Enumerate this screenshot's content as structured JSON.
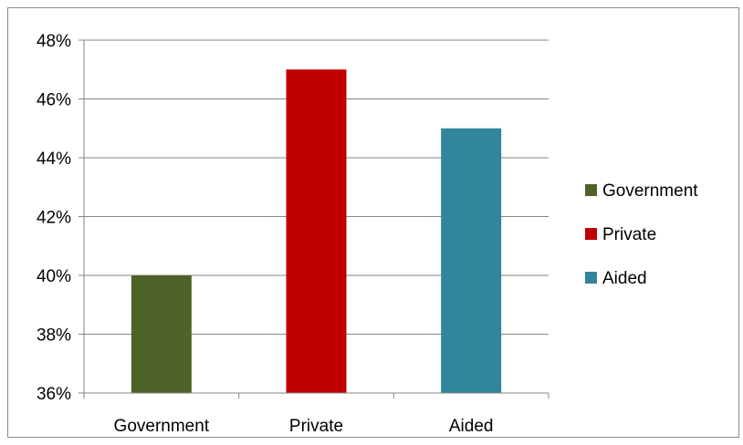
{
  "chart_data": {
    "type": "bar",
    "title": "",
    "xlabel": "",
    "ylabel": "",
    "categories": [
      "Government",
      "Private",
      "Aided"
    ],
    "values": [
      40,
      47,
      45
    ],
    "colors": [
      "#4f6228",
      "#c00000",
      "#31859c"
    ],
    "ylim": [
      36,
      48
    ],
    "yticks": [
      "36%",
      "38%",
      "40%",
      "42%",
      "44%",
      "46%",
      "48%"
    ],
    "ytick_values": [
      36,
      38,
      40,
      42,
      44,
      46,
      48
    ],
    "grid": true,
    "legend": {
      "placement": "right",
      "entries": [
        "Government",
        "Private",
        "Aided"
      ]
    }
  }
}
